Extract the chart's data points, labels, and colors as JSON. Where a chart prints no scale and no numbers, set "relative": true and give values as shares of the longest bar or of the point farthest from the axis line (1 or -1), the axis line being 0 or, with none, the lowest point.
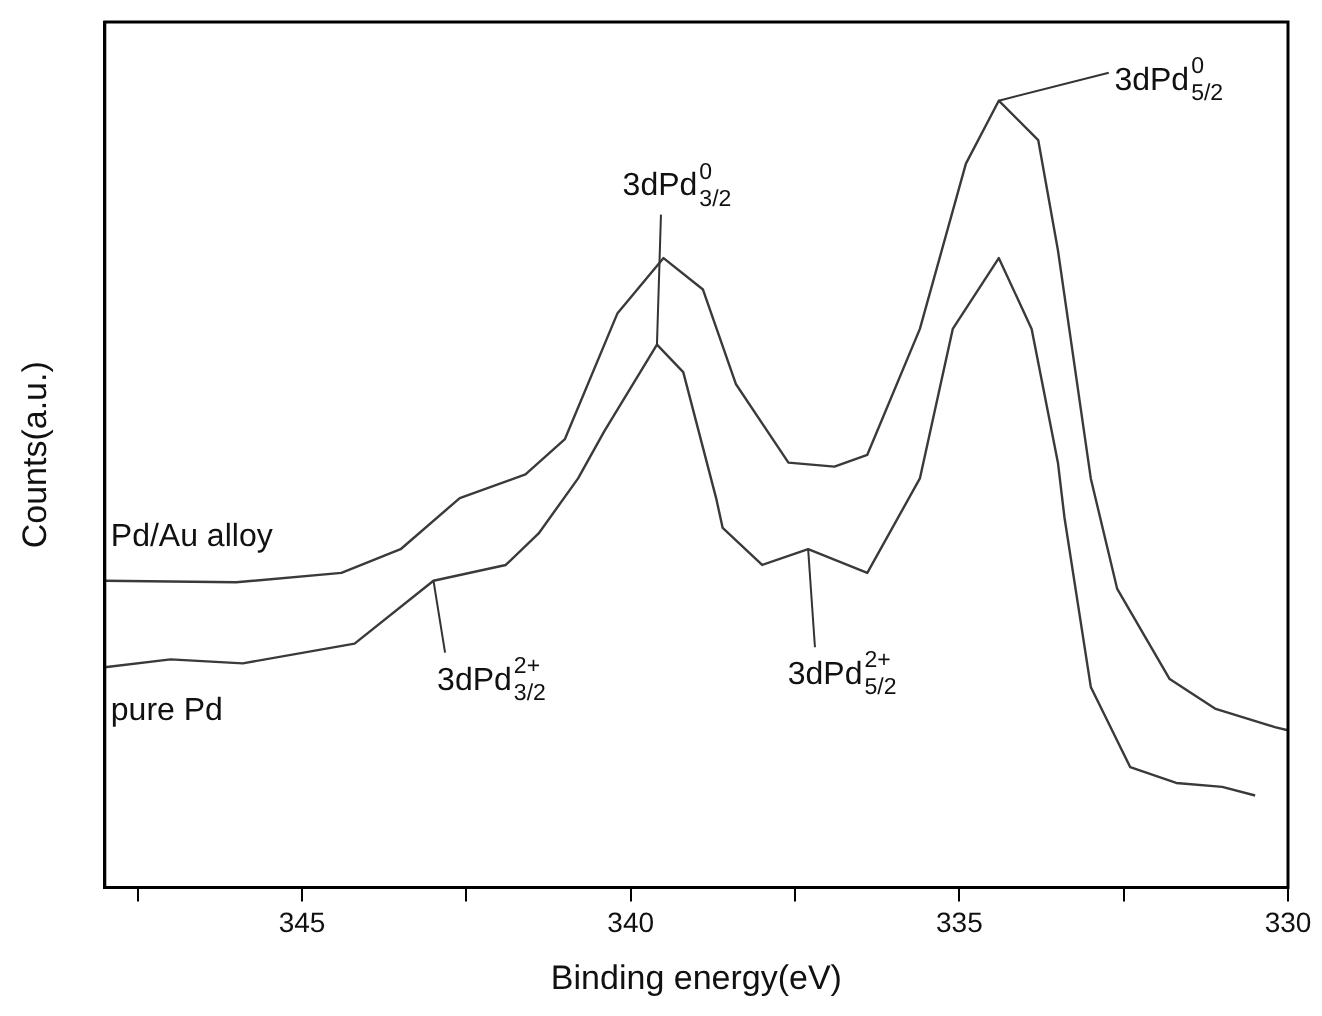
{
  "chart_data": {
    "type": "line",
    "relative": true,
    "xlabel": "Binding energy(eV)",
    "ylabel": "Counts(a.u.)",
    "xlim": [
      348,
      330
    ],
    "xticks": [
      {
        "value": 347.5,
        "label": null
      },
      345,
      {
        "value": 342.5,
        "label": null
      },
      340,
      {
        "value": 337.5,
        "label": null
      },
      335,
      {
        "value": 332.5,
        "label": null
      },
      330
    ],
    "grid": false,
    "legend": false,
    "marker": "none",
    "line_style": "solid",
    "tick_labels": "x",
    "series": [
      {
        "name": "Pd/Au alloy",
        "color": "#3a3a3a",
        "x": [
          348,
          346,
          344.4,
          343.5,
          342.6,
          341.6,
          341,
          340.2,
          339.5,
          338.9,
          338.4,
          337.6,
          336.9,
          336.4,
          335.6,
          334.9,
          334.4,
          333.8,
          333.5,
          333,
          332.6,
          331.8,
          331.1,
          330.2,
          330
        ],
        "values": [
          0.39,
          0.388,
          0.4,
          0.43,
          0.495,
          0.525,
          0.57,
          0.73,
          0.8,
          0.76,
          0.64,
          0.54,
          0.535,
          0.55,
          0.71,
          0.92,
          1,
          0.95,
          0.81,
          0.52,
          0.38,
          0.265,
          0.227,
          0.204,
          0.2
        ]
      },
      {
        "name": "pure Pd",
        "color": "#3a3a3a",
        "x": [
          348,
          347,
          345.9,
          344.2,
          343,
          341.9,
          341.4,
          340.8,
          340.4,
          339.6,
          339.2,
          338.7,
          338.6,
          338,
          337.3,
          336.4,
          335.6,
          335.1,
          334.4,
          333.9,
          333.5,
          333.4,
          333,
          332.4,
          331.7,
          331,
          330.5
        ],
        "values": [
          0.28,
          0.29,
          0.285,
          0.31,
          0.39,
          0.41,
          0.45,
          0.52,
          0.58,
          0.69,
          0.655,
          0.495,
          0.457,
          0.41,
          0.43,
          0.4,
          0.52,
          0.71,
          0.8,
          0.71,
          0.54,
          0.47,
          0.255,
          0.153,
          0.133,
          0.128,
          0.117
        ]
      }
    ],
    "annotations": [
      {
        "text": "3dPd$^{0}$$_{3/2}$",
        "x": 339.6,
        "y": 0.69
      },
      {
        "text": "3dPd$^{0}$$_{5/2}$",
        "x": 334.4,
        "y": 1
      },
      {
        "text": "3dPd$^{2+}$$_{3/2}$",
        "x": 343,
        "y": 0.39
      },
      {
        "text": "3dPd$^{2+}$$_{5/2}$",
        "x": 337.3,
        "y": 0.43
      }
    ]
  }
}
